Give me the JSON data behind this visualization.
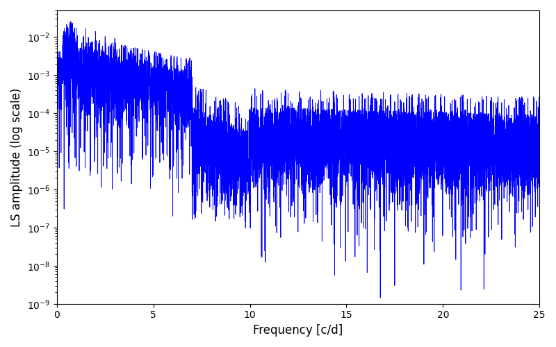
{
  "xlabel": "Frequency [c/d]",
  "ylabel": "LS amplitude (log scale)",
  "xlim": [
    0,
    25
  ],
  "ylim": [
    1e-09,
    0.05
  ],
  "line_color": "#0000ff",
  "background_color": "#ffffff",
  "x_ticks": [
    0,
    5,
    10,
    15,
    20,
    25
  ],
  "seed": 1234,
  "n_points": 8000,
  "freq_max": 25.0
}
